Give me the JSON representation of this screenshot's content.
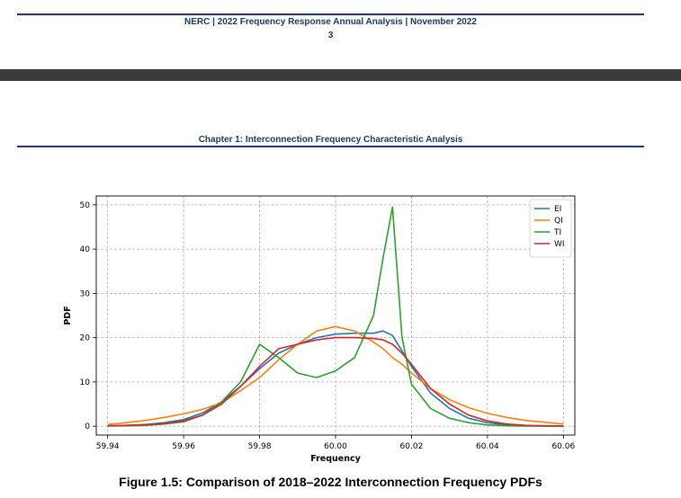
{
  "page_header": {
    "title": "NERC | 2022 Frequency Response Annual Analysis | November 2022",
    "page_number": "3"
  },
  "chapter_title": "Chapter 1: Interconnection Frequency Characteristic Analysis",
  "caption": "Figure 1.5: Comparison of 2018–2022 Interconnection Frequency PDFs",
  "chart_data": {
    "type": "line",
    "xlabel": "Frequency",
    "ylabel": "PDF",
    "xlim": [
      59.937,
      60.063
    ],
    "ylim": [
      -2,
      52
    ],
    "xticks": [
      59.94,
      59.96,
      59.98,
      60.0,
      60.02,
      60.04,
      60.06
    ],
    "xtick_labels": [
      "59.94",
      "59.96",
      "59.98",
      "60.00",
      "60.02",
      "60.04",
      "60.06"
    ],
    "yticks": [
      0,
      10,
      20,
      30,
      40,
      50
    ],
    "ytick_labels": [
      "0",
      "10",
      "20",
      "30",
      "40",
      "50"
    ],
    "grid": true,
    "legend_position": "top-right",
    "x": [
      59.94,
      59.945,
      59.95,
      59.955,
      59.96,
      59.965,
      59.97,
      59.975,
      59.98,
      59.985,
      59.99,
      59.995,
      60.0,
      60.005,
      60.01,
      60.0125,
      60.015,
      60.0175,
      60.02,
      60.025,
      60.03,
      60.035,
      60.04,
      60.045,
      60.05,
      60.055,
      60.06
    ],
    "series": [
      {
        "name": "EI",
        "color": "#1f77b4",
        "values": [
          0.1,
          0.2,
          0.4,
          0.8,
          1.5,
          3.0,
          5.5,
          9.0,
          13.0,
          16.5,
          18.5,
          20.0,
          20.8,
          21.0,
          21.0,
          21.5,
          20.5,
          17.0,
          13.5,
          7.5,
          4.0,
          1.8,
          0.8,
          0.3,
          0.1,
          0.05,
          0.02
        ]
      },
      {
        "name": "QI",
        "color": "#ff7f0e",
        "values": [
          0.4,
          0.8,
          1.3,
          2.0,
          2.8,
          3.8,
          5.3,
          8.0,
          11.0,
          15.0,
          18.5,
          21.5,
          22.5,
          21.5,
          19.0,
          17.5,
          15.5,
          14.0,
          12.0,
          8.5,
          6.0,
          4.2,
          2.9,
          2.0,
          1.3,
          0.9,
          0.5
        ]
      },
      {
        "name": "TI",
        "color": "#2ca02c",
        "values": [
          0.05,
          0.1,
          0.2,
          0.5,
          1.0,
          2.5,
          5.5,
          10.0,
          18.5,
          15.5,
          12.0,
          11.0,
          12.5,
          15.5,
          25.0,
          38.0,
          49.5,
          20.0,
          9.5,
          4.0,
          1.8,
          0.8,
          0.3,
          0.1,
          0.05,
          0.02,
          0.01
        ]
      },
      {
        "name": "WI",
        "color": "#d62728",
        "values": [
          0.1,
          0.2,
          0.3,
          0.6,
          1.2,
          2.5,
          5.0,
          9.0,
          13.5,
          17.5,
          18.5,
          19.5,
          20.0,
          20.0,
          19.8,
          19.5,
          18.5,
          16.5,
          14.0,
          8.5,
          5.0,
          2.5,
          1.2,
          0.5,
          0.2,
          0.1,
          0.05
        ]
      }
    ]
  }
}
